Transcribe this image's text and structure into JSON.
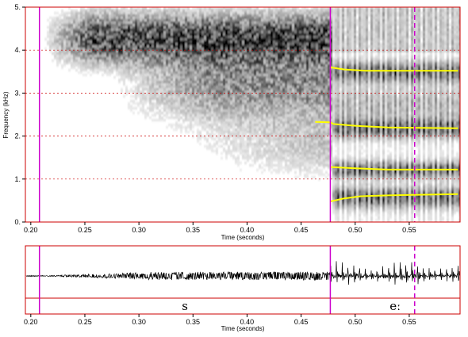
{
  "chart_data": [
    {
      "type": "spectrogram",
      "xlabel": "Time (seconds)",
      "ylabel": "Frequency (kHz)",
      "xlim": [
        0.195,
        0.597
      ],
      "ylim": [
        0,
        5
      ],
      "x_ticks": [
        0.2,
        0.25,
        0.3,
        0.35,
        0.4,
        0.45,
        0.5,
        0.55
      ],
      "x_tick_labels": [
        "0.20",
        "0.25",
        "0.30",
        "0.35",
        "0.40",
        "0.45",
        "0.50",
        "0.55"
      ],
      "y_ticks": [
        0,
        1,
        2,
        3,
        4,
        5
      ],
      "y_tick_labels": [
        "0.",
        "1.",
        "2.",
        "3.",
        "4.",
        "5."
      ],
      "grid": "dotted horizontal at each kHz",
      "boundaries": [
        {
          "time": 0.208,
          "style": "solid"
        },
        {
          "time": 0.477,
          "style": "solid"
        },
        {
          "time": 0.555,
          "style": "dashed"
        }
      ],
      "colors": {
        "frame": "#cc0000",
        "boundary": "#cc00cc",
        "formant": "#ffff00",
        "grid": "#cc0000"
      },
      "formants": [
        {
          "points": [
            [
              0.477,
              0.48
            ],
            [
              0.49,
              0.55
            ],
            [
              0.505,
              0.6
            ],
            [
              0.53,
              0.62
            ],
            [
              0.595,
              0.65
            ]
          ]
        },
        {
          "points": [
            [
              0.477,
              1.28
            ],
            [
              0.5,
              1.25
            ],
            [
              0.53,
              1.22
            ],
            [
              0.595,
              1.22
            ]
          ]
        },
        {
          "points": [
            [
              0.463,
              2.33
            ],
            [
              0.477,
              2.32
            ],
            [
              0.48,
              2.28
            ],
            [
              0.5,
              2.24
            ],
            [
              0.53,
              2.2
            ],
            [
              0.595,
              2.18
            ]
          ]
        },
        {
          "points": [
            [
              0.477,
              3.6
            ],
            [
              0.49,
              3.55
            ],
            [
              0.51,
              3.52
            ],
            [
              0.595,
              3.52
            ]
          ]
        }
      ]
    },
    {
      "type": "waveform_textgrid",
      "xlabel": "Time (seconds)",
      "xlim": [
        0.195,
        0.597
      ],
      "x_ticks": [
        0.2,
        0.25,
        0.3,
        0.35,
        0.4,
        0.45,
        0.5,
        0.55
      ],
      "x_tick_labels": [
        "0.20",
        "0.25",
        "0.30",
        "0.35",
        "0.40",
        "0.45",
        "0.50",
        "0.55"
      ],
      "segments": [
        {
          "label": "s",
          "start": 0.208,
          "end": 0.477
        },
        {
          "label": "eː",
          "start": 0.477,
          "end": 0.597
        }
      ]
    }
  ]
}
